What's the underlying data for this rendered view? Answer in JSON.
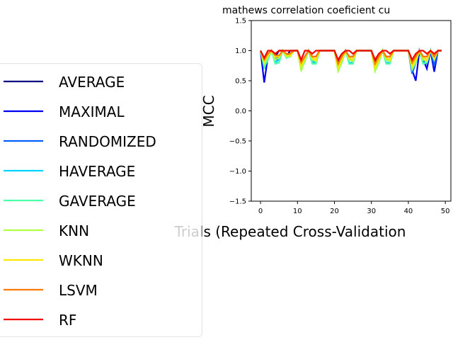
{
  "chart_data": {
    "type": "line",
    "title": "mathews correlation coeficient cu",
    "xlabel": "Trials (Repeated Cross-Validation",
    "ylabel": "MCC",
    "xlim": [
      -2.5,
      51.5
    ],
    "ylim": [
      -1.5,
      1.5
    ],
    "xticks": [
      0,
      10,
      20,
      30,
      40,
      50
    ],
    "yticks": [
      -1.5,
      -1.0,
      -0.5,
      0.0,
      0.5,
      1.0,
      1.5
    ],
    "xtick_labels": [
      "0",
      "10",
      "20",
      "30",
      "40",
      "50"
    ],
    "ytick_labels": [
      "−1.5",
      "−1.0",
      "−0.5",
      "0.0",
      "0.5",
      "1.0",
      "1.5"
    ],
    "grid": false,
    "legend_position": "left",
    "x": [
      0,
      1,
      2,
      3,
      4,
      5,
      6,
      7,
      8,
      9,
      10,
      11,
      12,
      13,
      14,
      15,
      16,
      17,
      18,
      19,
      20,
      21,
      22,
      23,
      24,
      25,
      26,
      27,
      28,
      29,
      30,
      31,
      32,
      33,
      34,
      35,
      36,
      37,
      38,
      39,
      40,
      41,
      42,
      43,
      44,
      45,
      46,
      47,
      48,
      49
    ],
    "series": [
      {
        "name": "AVERAGE",
        "color": "#000080",
        "values": [
          1.0,
          0.8,
          0.9,
          1.0,
          0.9,
          1.0,
          1.0,
          0.9,
          1.0,
          1.0,
          1.0,
          0.8,
          0.9,
          1.0,
          0.9,
          0.9,
          1.0,
          1.0,
          1.0,
          1.0,
          1.0,
          0.8,
          0.9,
          1.0,
          0.9,
          0.9,
          1.0,
          1.0,
          1.0,
          1.0,
          1.0,
          0.8,
          0.9,
          1.0,
          0.9,
          0.9,
          1.0,
          1.0,
          1.0,
          1.0,
          1.0,
          0.8,
          0.9,
          1.0,
          0.9,
          0.9,
          1.0,
          0.9,
          1.0,
          1.0
        ]
      },
      {
        "name": "MAXIMAL",
        "color": "#0000f1",
        "values": [
          1.0,
          0.47,
          0.9,
          1.0,
          0.85,
          0.9,
          1.0,
          0.9,
          0.9,
          1.0,
          1.0,
          0.75,
          0.9,
          1.0,
          0.85,
          0.8,
          1.0,
          1.0,
          1.0,
          1.0,
          1.0,
          0.75,
          0.85,
          1.0,
          0.85,
          0.85,
          1.0,
          1.0,
          1.0,
          1.0,
          1.0,
          0.72,
          0.85,
          1.0,
          0.85,
          0.85,
          1.0,
          1.0,
          1.0,
          1.0,
          1.0,
          0.68,
          0.5,
          1.0,
          0.85,
          0.7,
          1.0,
          0.65,
          1.0,
          1.0
        ]
      },
      {
        "name": "RANDOMIZED",
        "color": "#0060ff",
        "values": [
          1.0,
          0.7,
          0.95,
          1.0,
          0.85,
          0.85,
          1.0,
          0.9,
          0.95,
          1.0,
          1.0,
          0.7,
          0.9,
          1.0,
          0.85,
          0.8,
          1.0,
          1.0,
          1.0,
          1.0,
          1.0,
          0.7,
          0.85,
          1.0,
          0.85,
          0.85,
          1.0,
          1.0,
          1.0,
          1.0,
          1.0,
          0.7,
          0.85,
          1.0,
          0.85,
          0.85,
          1.0,
          1.0,
          1.0,
          1.0,
          1.0,
          0.62,
          0.8,
          1.0,
          0.8,
          0.78,
          1.0,
          0.75,
          1.0,
          1.0
        ]
      },
      {
        "name": "HAVERAGE",
        "color": "#00d4ff",
        "values": [
          1.0,
          0.75,
          0.9,
          1.0,
          0.8,
          0.85,
          1.0,
          0.9,
          0.9,
          1.0,
          1.0,
          0.7,
          0.85,
          1.0,
          0.8,
          0.8,
          1.0,
          1.0,
          1.0,
          1.0,
          1.0,
          0.7,
          0.8,
          1.0,
          0.8,
          0.8,
          1.0,
          1.0,
          1.0,
          1.0,
          1.0,
          0.7,
          0.8,
          1.0,
          0.8,
          0.8,
          1.0,
          1.0,
          1.0,
          1.0,
          1.0,
          0.7,
          0.8,
          1.0,
          0.8,
          0.8,
          1.0,
          0.85,
          1.0,
          1.0
        ]
      },
      {
        "name": "GAVERAGE",
        "color": "#4dffaa",
        "values": [
          1.0,
          0.72,
          0.85,
          1.0,
          0.78,
          0.8,
          1.0,
          0.88,
          0.9,
          1.0,
          1.0,
          0.68,
          0.82,
          1.0,
          0.78,
          0.78,
          1.0,
          1.0,
          1.0,
          1.0,
          1.0,
          0.66,
          0.8,
          1.0,
          0.78,
          0.78,
          1.0,
          1.0,
          1.0,
          1.0,
          1.0,
          0.66,
          0.8,
          1.0,
          0.78,
          0.78,
          1.0,
          1.0,
          1.0,
          1.0,
          1.0,
          0.68,
          0.8,
          1.0,
          0.78,
          0.8,
          1.0,
          0.85,
          1.0,
          1.0
        ]
      },
      {
        "name": "KNN",
        "color": "#b1ff46",
        "values": [
          1.0,
          0.78,
          0.9,
          1.0,
          0.85,
          0.88,
          1.0,
          0.9,
          0.9,
          1.0,
          1.0,
          0.66,
          0.85,
          1.0,
          0.85,
          0.82,
          1.0,
          1.0,
          1.0,
          1.0,
          1.0,
          0.66,
          0.82,
          1.0,
          0.85,
          0.82,
          1.0,
          1.0,
          1.0,
          1.0,
          1.0,
          0.66,
          0.82,
          1.0,
          0.85,
          0.82,
          1.0,
          1.0,
          1.0,
          1.0,
          1.0,
          0.7,
          0.82,
          1.0,
          0.85,
          0.82,
          1.0,
          0.85,
          1.0,
          1.0
        ]
      },
      {
        "name": "WKNN",
        "color": "#ffe600",
        "values": [
          1.0,
          0.82,
          0.92,
          1.0,
          0.9,
          0.9,
          1.0,
          0.92,
          0.92,
          1.0,
          1.0,
          0.75,
          0.88,
          1.0,
          0.88,
          0.85,
          1.0,
          1.0,
          1.0,
          1.0,
          1.0,
          0.72,
          0.85,
          1.0,
          0.88,
          0.85,
          1.0,
          1.0,
          1.0,
          1.0,
          1.0,
          0.72,
          0.85,
          1.0,
          0.88,
          0.85,
          1.0,
          1.0,
          1.0,
          1.0,
          1.0,
          0.75,
          0.85,
          1.0,
          0.88,
          0.85,
          1.0,
          0.88,
          1.0,
          1.0
        ]
      },
      {
        "name": "LSVM",
        "color": "#ff7a00",
        "values": [
          1.0,
          0.85,
          0.95,
          1.0,
          0.92,
          0.92,
          1.0,
          0.95,
          0.95,
          1.0,
          1.0,
          0.8,
          0.9,
          1.0,
          0.9,
          0.9,
          1.0,
          1.0,
          1.0,
          1.0,
          1.0,
          0.78,
          0.9,
          1.0,
          0.9,
          0.9,
          1.0,
          1.0,
          1.0,
          1.0,
          1.0,
          0.78,
          0.9,
          1.0,
          0.9,
          0.9,
          1.0,
          1.0,
          1.0,
          1.0,
          1.0,
          0.8,
          0.9,
          1.0,
          0.9,
          0.9,
          1.0,
          0.9,
          1.0,
          1.0
        ]
      },
      {
        "name": "RF",
        "color": "#f10800",
        "values": [
          1.0,
          0.88,
          1.0,
          1.0,
          0.95,
          1.0,
          1.0,
          1.0,
          1.0,
          1.0,
          1.0,
          0.85,
          1.0,
          1.0,
          0.95,
          1.0,
          1.0,
          1.0,
          1.0,
          1.0,
          1.0,
          0.85,
          0.95,
          1.0,
          1.0,
          0.95,
          1.0,
          1.0,
          1.0,
          1.0,
          1.0,
          0.85,
          0.95,
          1.0,
          1.0,
          0.95,
          1.0,
          1.0,
          1.0,
          1.0,
          1.0,
          0.85,
          0.95,
          1.0,
          1.0,
          0.95,
          1.0,
          0.95,
          1.0,
          1.0
        ]
      }
    ]
  }
}
